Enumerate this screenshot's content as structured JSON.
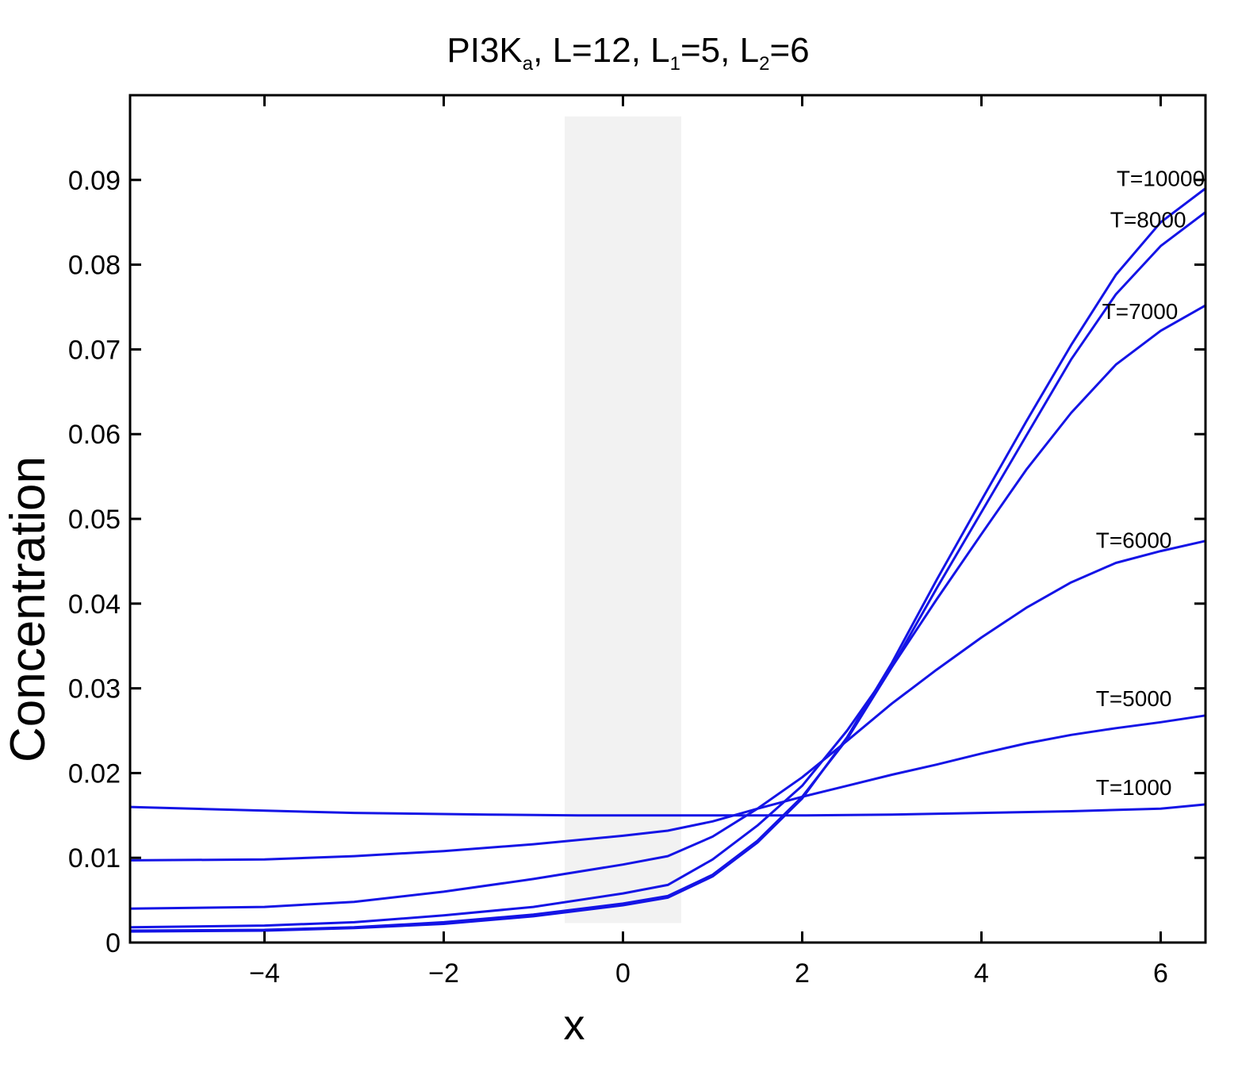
{
  "chart_data": {
    "type": "line",
    "title": {
      "main": "PI3K",
      "main_sub": "a",
      "p1": ", L=12, L",
      "p1_sub": "1",
      "p2": "=5, L",
      "p2_sub": "2",
      "p3": "=6"
    },
    "xlabel": "x",
    "ylabel": "Concentration",
    "xlim": [
      -5.5,
      6.5
    ],
    "ylim": [
      0,
      0.1
    ],
    "x_ticks": [
      -4,
      -2,
      0,
      2,
      4,
      6
    ],
    "x_tick_labels": [
      "−4",
      "−2",
      "0",
      "2",
      "4",
      "6"
    ],
    "y_ticks": [
      0,
      0.01,
      0.02,
      0.03,
      0.04,
      0.05,
      0.06,
      0.07,
      0.08,
      0.09
    ],
    "y_tick_labels": [
      "0",
      "0.01",
      "0.02",
      "0.03",
      "0.04",
      "0.05",
      "0.06",
      "0.07",
      "0.08",
      "0.09"
    ],
    "grid": false,
    "shaded_region": {
      "x": [
        -0.65,
        0.65
      ],
      "y": [
        0.0023,
        0.0975
      ],
      "color": "#f2f2f2"
    },
    "line_color": "#1414e6",
    "series": [
      {
        "name": "T=1000",
        "x": [
          -5.5,
          -4.5,
          -3,
          -1.5,
          -0.5,
          0.5,
          1.5,
          2,
          3,
          4,
          5,
          6,
          6.5
        ],
        "y": [
          0.016,
          0.0157,
          0.0153,
          0.0151,
          0.015,
          0.015,
          0.015,
          0.015,
          0.0151,
          0.0153,
          0.0155,
          0.0158,
          0.0163
        ]
      },
      {
        "name": "T=5000",
        "x": [
          -5.5,
          -4,
          -3,
          -2,
          -1,
          0,
          0.5,
          1,
          1.5,
          2,
          2.5,
          3,
          3.5,
          4,
          4.5,
          5,
          5.5,
          6,
          6.5
        ],
        "y": [
          0.0097,
          0.0098,
          0.0102,
          0.0108,
          0.0116,
          0.0126,
          0.0132,
          0.0143,
          0.0158,
          0.0172,
          0.0185,
          0.0198,
          0.021,
          0.0223,
          0.0235,
          0.0245,
          0.0253,
          0.026,
          0.0268
        ]
      },
      {
        "name": "T=6000",
        "x": [
          -5.5,
          -4,
          -3,
          -2,
          -1,
          0,
          0.5,
          1,
          1.5,
          2,
          2.5,
          3,
          3.5,
          4,
          4.5,
          5,
          5.5,
          6,
          6.5
        ],
        "y": [
          0.004,
          0.0042,
          0.0048,
          0.006,
          0.0075,
          0.0092,
          0.0102,
          0.0125,
          0.0158,
          0.0195,
          0.0238,
          0.0282,
          0.0322,
          0.036,
          0.0395,
          0.0425,
          0.0448,
          0.0462,
          0.0474
        ]
      },
      {
        "name": "T=7000",
        "x": [
          -5.5,
          -4,
          -3,
          -2,
          -1,
          0,
          0.5,
          1,
          1.5,
          2,
          2.5,
          3,
          3.5,
          4,
          4.5,
          5,
          5.5,
          6,
          6.5
        ],
        "y": [
          0.0018,
          0.002,
          0.0024,
          0.0032,
          0.0042,
          0.0058,
          0.0068,
          0.0098,
          0.0138,
          0.0185,
          0.025,
          0.0325,
          0.0405,
          0.0482,
          0.0558,
          0.0625,
          0.0682,
          0.0722,
          0.0752
        ]
      },
      {
        "name": "T=8000",
        "x": [
          -5.5,
          -4,
          -3,
          -2,
          -1,
          0,
          0.5,
          1,
          1.5,
          2,
          2.5,
          3,
          3.5,
          4,
          4.5,
          5,
          5.5,
          6,
          6.5
        ],
        "y": [
          0.0014,
          0.0015,
          0.0018,
          0.0024,
          0.0033,
          0.0046,
          0.0055,
          0.008,
          0.012,
          0.0172,
          0.024,
          0.0325,
          0.0418,
          0.0508,
          0.0598,
          0.0688,
          0.0765,
          0.0822,
          0.0862
        ]
      },
      {
        "name": "T=10000",
        "x": [
          -5.5,
          -4,
          -3,
          -2,
          -1,
          0,
          0.5,
          1,
          1.5,
          2,
          2.5,
          3,
          3.5,
          4,
          4.5,
          5,
          5.5,
          6,
          6.5
        ],
        "y": [
          0.0013,
          0.0014,
          0.0017,
          0.0022,
          0.0031,
          0.0044,
          0.0053,
          0.0078,
          0.0118,
          0.017,
          0.0242,
          0.033,
          0.0428,
          0.0522,
          0.0615,
          0.0705,
          0.0788,
          0.085,
          0.089
        ]
      }
    ],
    "series_labels": [
      {
        "text": "T=10000",
        "x": 6.0,
        "y": 0.0893
      },
      {
        "text": "T=8000",
        "x": 5.86,
        "y": 0.0844
      },
      {
        "text": "T=7000",
        "x": 5.77,
        "y": 0.0736
      },
      {
        "text": "T=6000",
        "x": 5.7,
        "y": 0.0466
      },
      {
        "text": "T=5000",
        "x": 5.7,
        "y": 0.0279
      },
      {
        "text": "T=1000",
        "x": 5.7,
        "y": 0.0174
      }
    ]
  }
}
